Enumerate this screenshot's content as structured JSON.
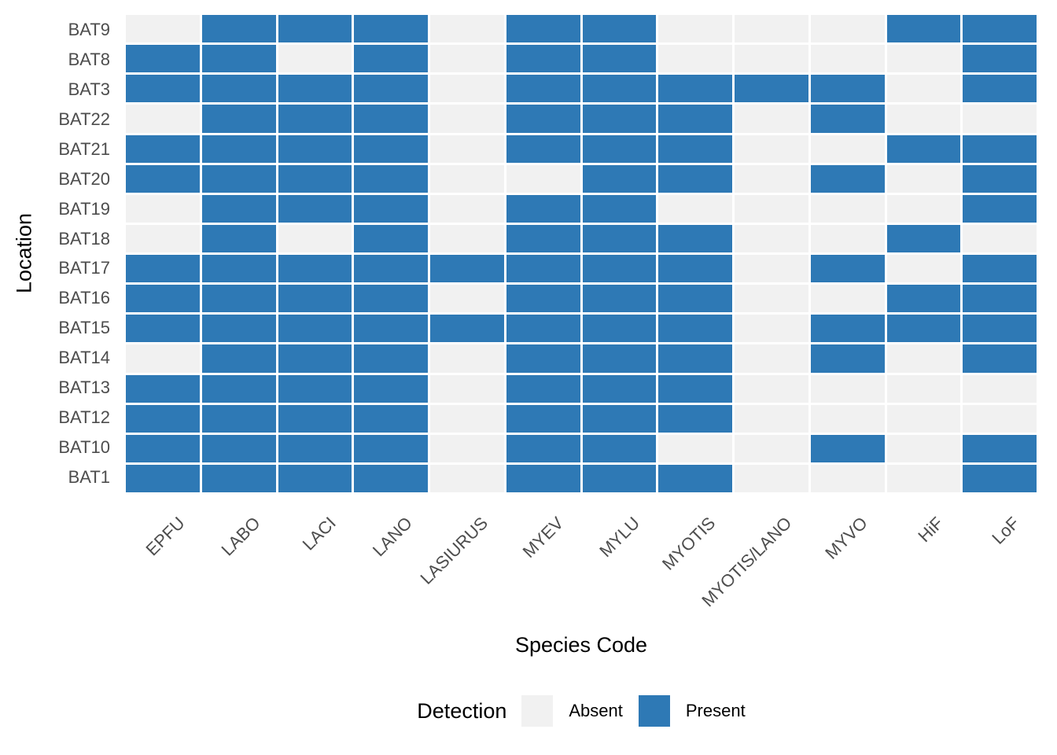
{
  "figure": {
    "background_color": "#ffffff",
    "tick_label_color": "#4d4d4d",
    "title_color": "#000000"
  },
  "chart_data": {
    "type": "heatmap",
    "title": "",
    "xlabel": "Species Code",
    "ylabel": "Location",
    "x_categories": [
      "EPFU",
      "LABO",
      "LACI",
      "LANO",
      "LASIURUS",
      "MYEV",
      "MYLU",
      "MYOTIS",
      "MYOTIS/LANO",
      "MYVO",
      "HiF",
      "LoF"
    ],
    "y_categories": [
      "BAT9",
      "BAT8",
      "BAT3",
      "BAT22",
      "BAT21",
      "BAT20",
      "BAT19",
      "BAT18",
      "BAT17",
      "BAT16",
      "BAT15",
      "BAT14",
      "BAT13",
      "BAT12",
      "BAT10",
      "BAT1"
    ],
    "value_meaning": {
      "0": "Absent",
      "1": "Present"
    },
    "matrix": [
      [
        0,
        1,
        1,
        1,
        0,
        1,
        1,
        0,
        0,
        0,
        1,
        1
      ],
      [
        1,
        1,
        0,
        1,
        0,
        1,
        1,
        0,
        0,
        0,
        0,
        1
      ],
      [
        1,
        1,
        1,
        1,
        0,
        1,
        1,
        1,
        1,
        1,
        0,
        1
      ],
      [
        0,
        1,
        1,
        1,
        0,
        1,
        1,
        1,
        0,
        1,
        0,
        0
      ],
      [
        1,
        1,
        1,
        1,
        0,
        1,
        1,
        1,
        0,
        0,
        1,
        1
      ],
      [
        1,
        1,
        1,
        1,
        0,
        0,
        1,
        1,
        0,
        1,
        0,
        1
      ],
      [
        0,
        1,
        1,
        1,
        0,
        1,
        1,
        0,
        0,
        0,
        0,
        1
      ],
      [
        0,
        1,
        0,
        1,
        0,
        1,
        1,
        1,
        0,
        0,
        1,
        0
      ],
      [
        1,
        1,
        1,
        1,
        1,
        1,
        1,
        1,
        0,
        1,
        0,
        1
      ],
      [
        1,
        1,
        1,
        1,
        0,
        1,
        1,
        1,
        0,
        0,
        1,
        1
      ],
      [
        1,
        1,
        1,
        1,
        1,
        1,
        1,
        1,
        0,
        1,
        1,
        1
      ],
      [
        0,
        1,
        1,
        1,
        0,
        1,
        1,
        1,
        0,
        1,
        0,
        1
      ],
      [
        1,
        1,
        1,
        1,
        0,
        1,
        1,
        1,
        0,
        0,
        0,
        0
      ],
      [
        1,
        1,
        1,
        1,
        0,
        1,
        1,
        1,
        0,
        0,
        0,
        0
      ],
      [
        1,
        1,
        1,
        1,
        0,
        1,
        1,
        0,
        0,
        1,
        0,
        1
      ],
      [
        1,
        1,
        1,
        1,
        0,
        1,
        1,
        1,
        0,
        0,
        0,
        1
      ]
    ],
    "colors": {
      "absent": "#f1f1f1",
      "present": "#2e79b5"
    },
    "grid_gap_color": "#ffffff",
    "legend": {
      "title": "Detection",
      "position": "bottom",
      "items": [
        {
          "label": "Absent",
          "color": "#f1f1f1"
        },
        {
          "label": "Present",
          "color": "#2e79b5"
        }
      ]
    },
    "layout": {
      "x_tick_angle_deg": 45,
      "grid_rows": 16,
      "grid_cols": 12
    }
  }
}
